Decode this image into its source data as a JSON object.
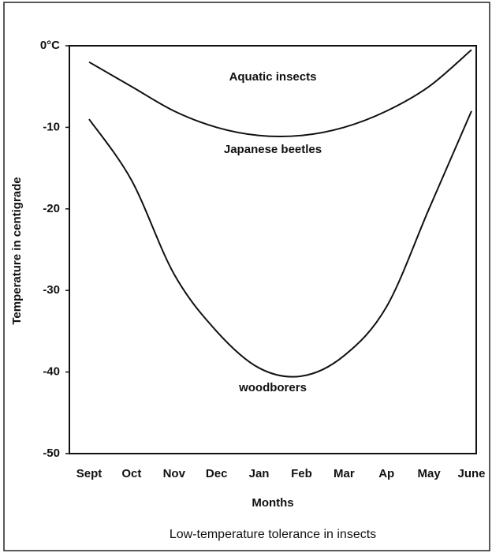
{
  "chart_data": {
    "type": "line",
    "title": "Low-temperature tolerance in insects",
    "xlabel": "Months",
    "ylabel": "Temperature in centigrade",
    "categories": [
      "Sept",
      "Oct",
      "Nov",
      "Dec",
      "Jan",
      "Feb",
      "Mar",
      "Ap",
      "May",
      "June"
    ],
    "series": [
      {
        "color": "#111111",
        "values": [
          -2,
          -5,
          -8,
          -10,
          -11,
          -11,
          -10,
          -8,
          -5,
          -0.5
        ]
      },
      {
        "color": "#111111",
        "values": [
          -9,
          -16.5,
          -28,
          -35,
          -39.5,
          -40.5,
          -38,
          -32,
          -20,
          -8
        ]
      }
    ],
    "annotations": [
      "Aquatic insects",
      "Japanese beetles",
      "woodborers"
    ],
    "ylim": [
      -50,
      0
    ],
    "yticks": [
      {
        "value": 0,
        "label": "0°C"
      },
      -10,
      -20,
      -30,
      -40,
      -50
    ],
    "grid": false
  }
}
